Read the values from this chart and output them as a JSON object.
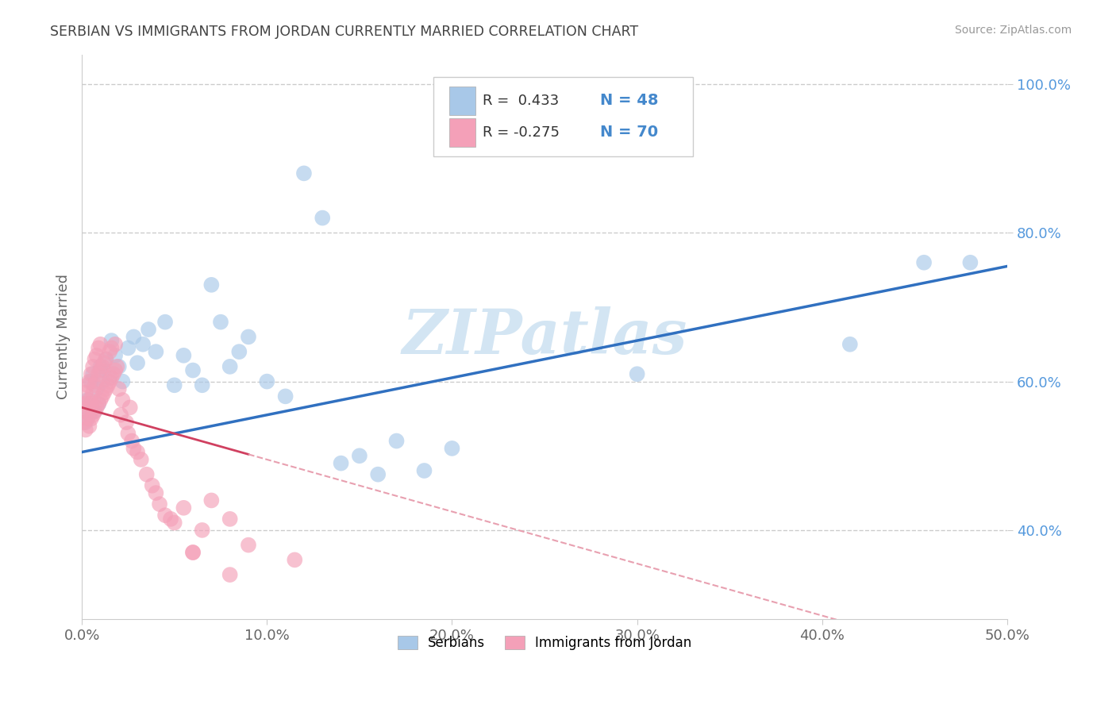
{
  "title": "SERBIAN VS IMMIGRANTS FROM JORDAN CURRENTLY MARRIED CORRELATION CHART",
  "source": "Source: ZipAtlas.com",
  "ylabel": "Currently Married",
  "xlim": [
    0.0,
    0.5
  ],
  "ylim": [
    0.28,
    1.04
  ],
  "xticks": [
    0.0,
    0.1,
    0.2,
    0.3,
    0.4,
    0.5
  ],
  "yticks": [
    0.4,
    0.6,
    0.8,
    1.0
  ],
  "ytick_labels": [
    "40.0%",
    "60.0%",
    "80.0%",
    "100.0%"
  ],
  "xtick_labels": [
    "0.0%",
    "10.0%",
    "20.0%",
    "30.0%",
    "40.0%",
    "50.0%"
  ],
  "blue_color": "#a8c8e8",
  "pink_color": "#f4a0b8",
  "blue_line_color": "#3070c0",
  "pink_line_color": "#d04060",
  "pink_line_dash_color": "#e8a0b0",
  "watermark_color": "#c8dff0",
  "blue_label_color": "#4488cc",
  "ytick_color": "#5599dd",
  "grid_color": "#cccccc"
}
